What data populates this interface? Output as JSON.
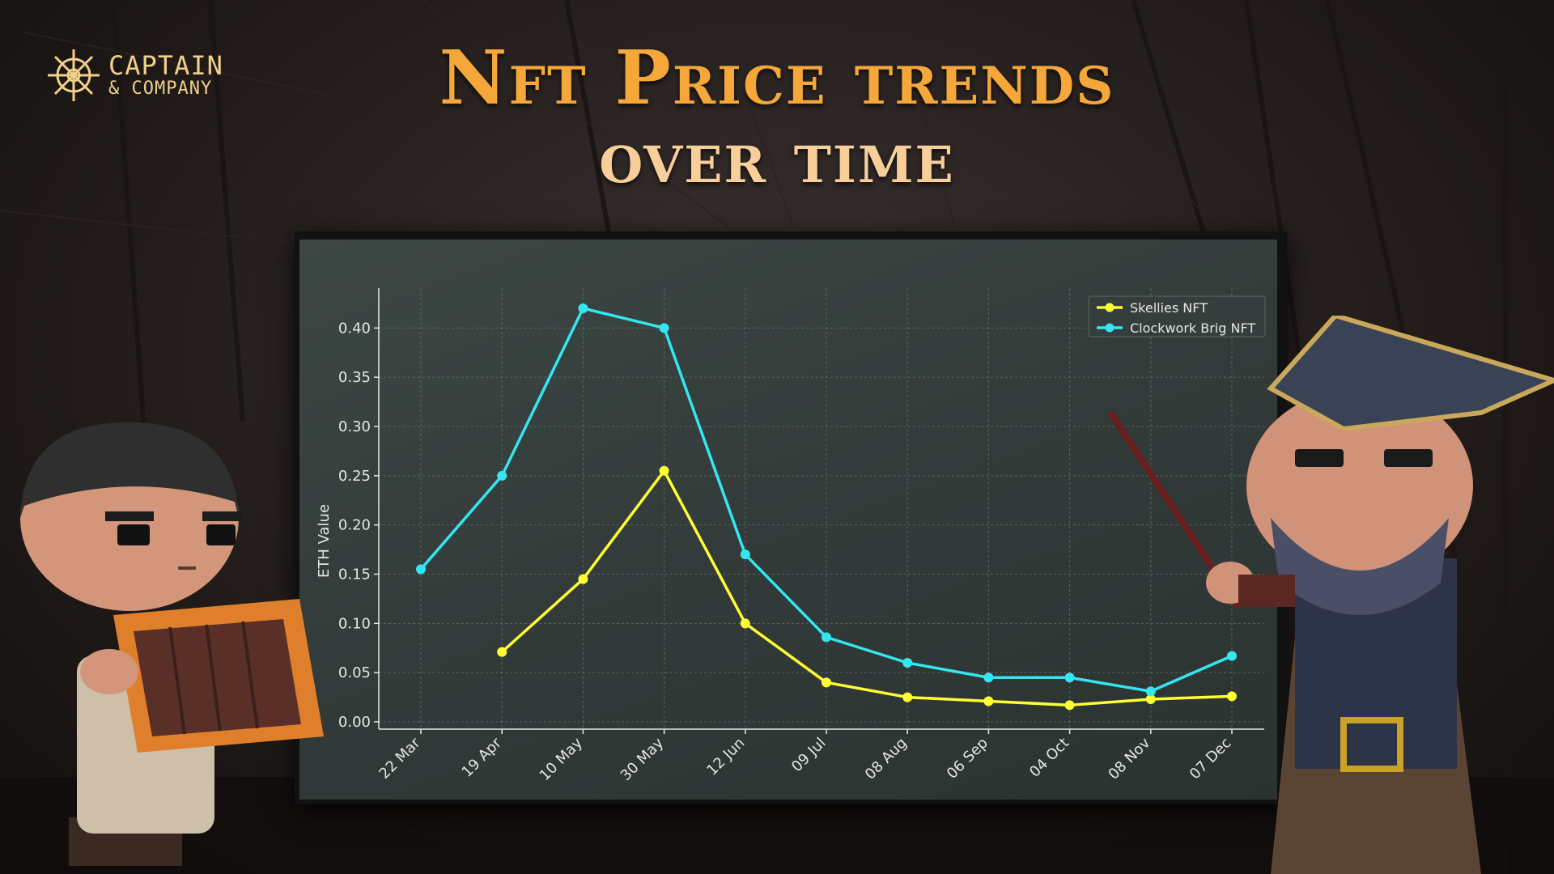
{
  "logo": {
    "line1": "CAPTAIN",
    "line2": "& COMPANY"
  },
  "title": {
    "line1": "Nft Price trends",
    "line2": "over time"
  },
  "colors": {
    "title": "#f6a73a",
    "title_light": "#f8cf9a",
    "logo": "#f2d08a",
    "panel": "#353e3c",
    "axis": "#e6e6e6"
  },
  "chart_data": {
    "type": "line",
    "title": "",
    "xlabel": "",
    "ylabel": "ETH Value",
    "categories": [
      "22 Mar",
      "19 Apr",
      "10 May",
      "30 May",
      "12 Jun",
      "09 Jul",
      "08 Aug",
      "06 Sep",
      "04 Oct",
      "08 Nov",
      "07 Dec"
    ],
    "ylim": [
      0,
      0.42
    ],
    "yticks": [
      "0.00",
      "0.05",
      "0.10",
      "0.15",
      "0.20",
      "0.25",
      "0.30",
      "0.35",
      "0.40"
    ],
    "grid": true,
    "legend_position": "top-right",
    "series": [
      {
        "name": "Skellies NFT",
        "color": "#ffff33",
        "values": [
          null,
          0.071,
          0.145,
          0.255,
          0.1,
          0.04,
          0.025,
          0.021,
          0.017,
          0.023,
          0.026
        ]
      },
      {
        "name": "Clockwork Brig NFT",
        "color": "#33e6f0",
        "values": [
          0.155,
          0.25,
          0.42,
          0.4,
          0.17,
          0.086,
          0.06,
          0.045,
          0.045,
          0.031,
          0.067
        ]
      }
    ]
  }
}
